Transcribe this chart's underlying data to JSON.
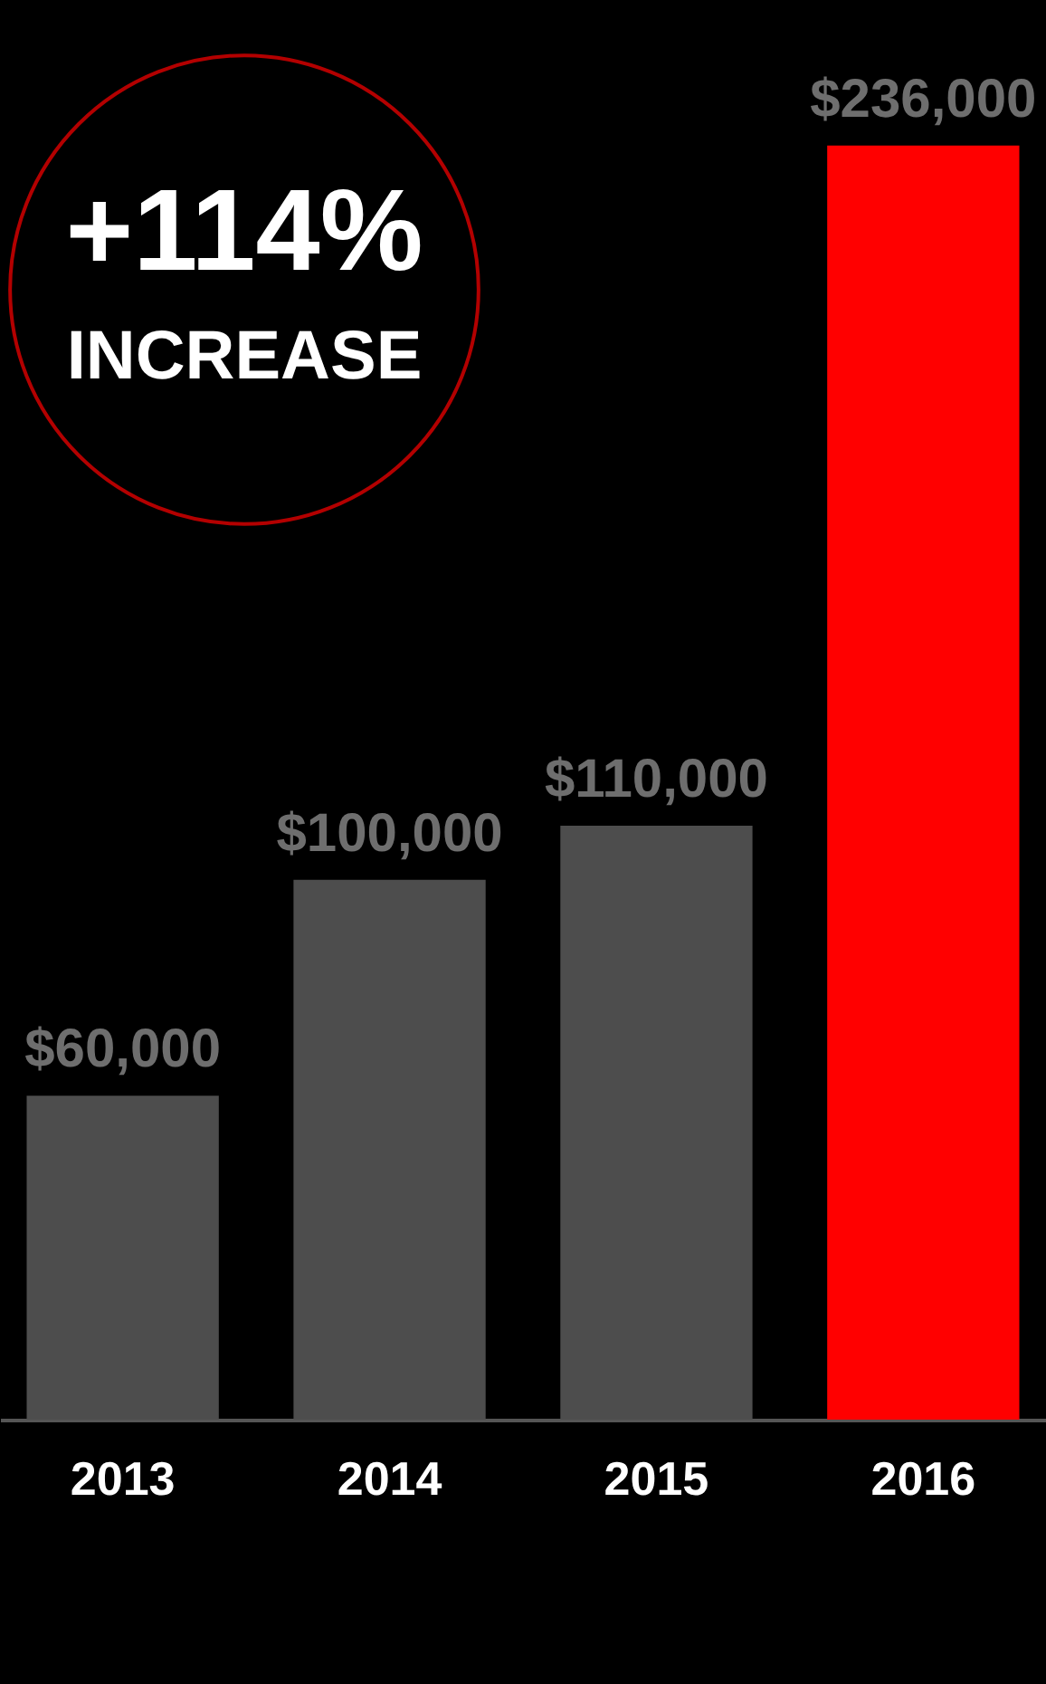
{
  "chart_data": {
    "type": "bar",
    "categories": [
      "2013",
      "2014",
      "2015",
      "2016"
    ],
    "values": [
      60000,
      100000,
      110000,
      236000
    ],
    "colors": [
      "#4d4d4d",
      "#4d4d4d",
      "#4d4d4d",
      "#ff0000"
    ],
    "value_labels": [
      "$60,000",
      "$100,000",
      "$110,000",
      "$236,000"
    ],
    "annotations": [
      "+114%",
      "INCREASE"
    ]
  }
}
